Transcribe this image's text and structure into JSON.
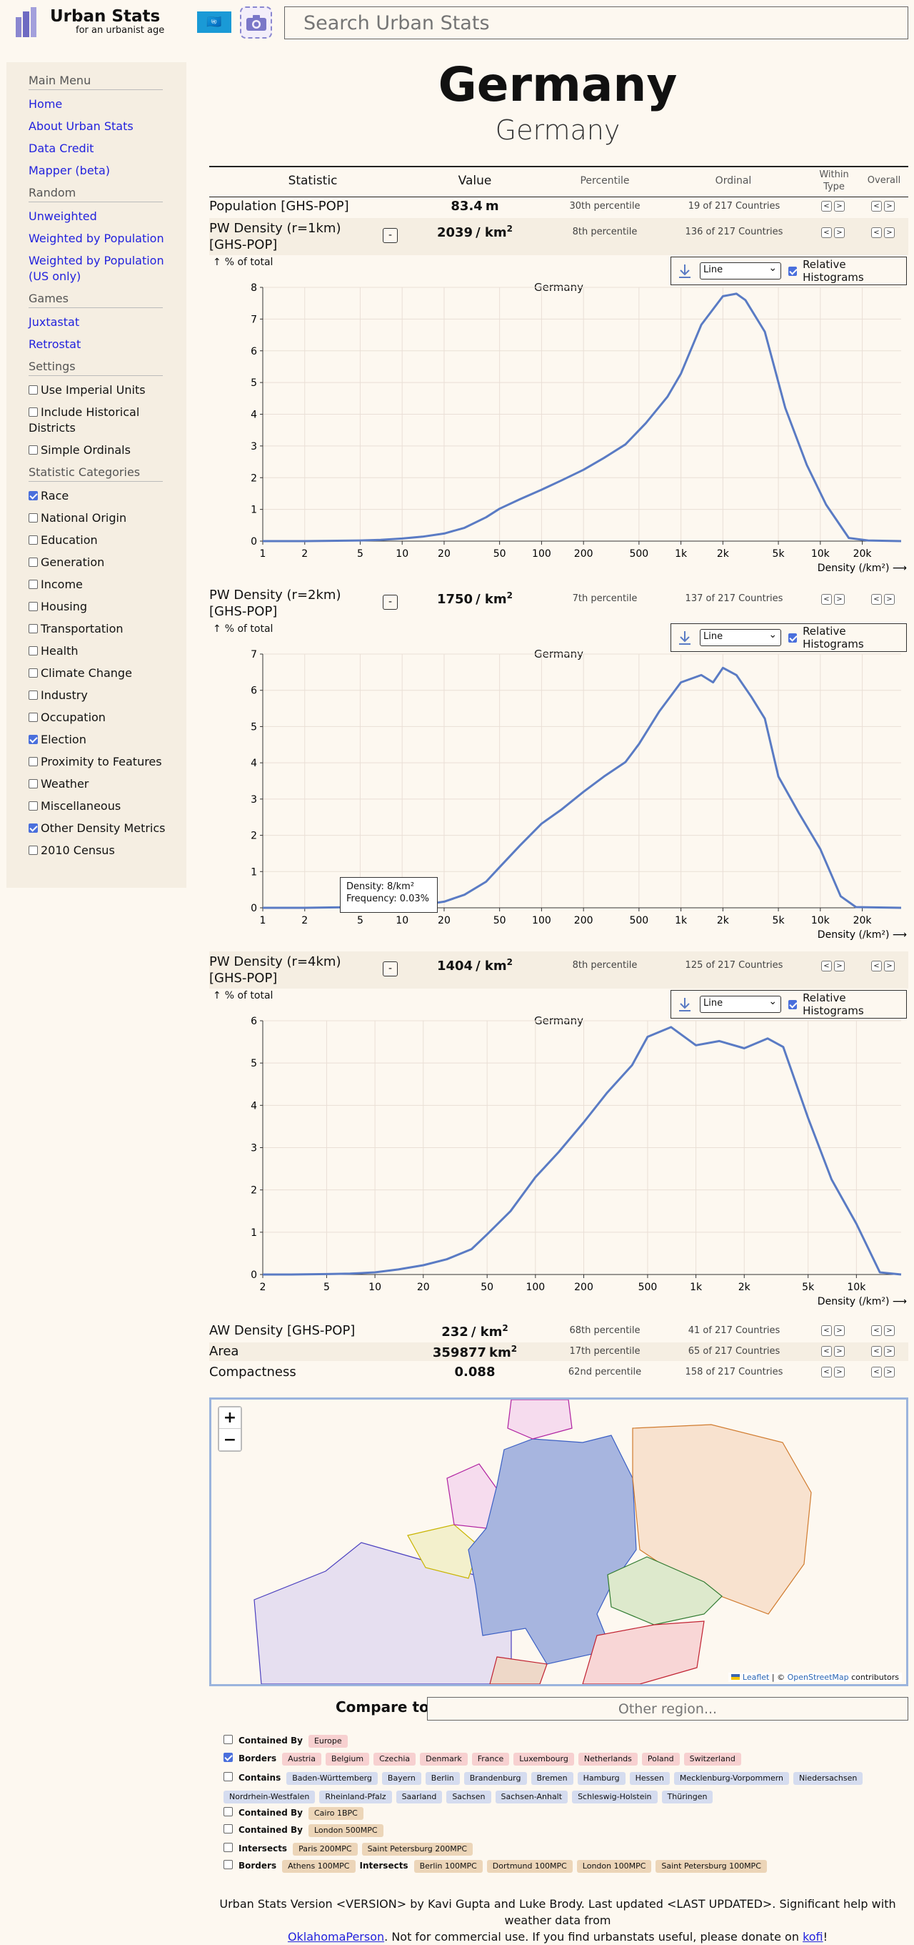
{
  "header": {
    "brand_title": "Urban Stats",
    "brand_tagline": "for an urbanist age",
    "flag_icon": "un-flag-icon",
    "search_placeholder": "Search Urban Stats"
  },
  "sidebar": {
    "main_menu_title": "Main Menu",
    "main_menu": [
      "Home",
      "About Urban Stats",
      "Data Credit",
      "Mapper (beta)"
    ],
    "random_title": "Random",
    "random": [
      "Unweighted",
      "Weighted by Population",
      "Weighted by Population (US only)"
    ],
    "games_title": "Games",
    "games": [
      "Juxtastat",
      "Retrostat"
    ],
    "settings_title": "Settings",
    "settings": [
      {
        "label": "Use Imperial Units",
        "checked": false
      },
      {
        "label": "Include Historical Districts",
        "checked": false
      },
      {
        "label": "Simple Ordinals",
        "checked": false
      }
    ],
    "categories_title": "Statistic Categories",
    "categories": [
      {
        "label": "Race",
        "checked": true
      },
      {
        "label": "National Origin",
        "checked": false
      },
      {
        "label": "Education",
        "checked": false
      },
      {
        "label": "Generation",
        "checked": false
      },
      {
        "label": "Income",
        "checked": false
      },
      {
        "label": "Housing",
        "checked": false
      },
      {
        "label": "Transportation",
        "checked": false
      },
      {
        "label": "Health",
        "checked": false
      },
      {
        "label": "Climate Change",
        "checked": false
      },
      {
        "label": "Industry",
        "checked": false
      },
      {
        "label": "Occupation",
        "checked": false
      },
      {
        "label": "Election",
        "checked": true
      },
      {
        "label": "Proximity to Features",
        "checked": false
      },
      {
        "label": "Weather",
        "checked": false
      },
      {
        "label": "Miscellaneous",
        "checked": false
      },
      {
        "label": "Other Density Metrics",
        "checked": true
      },
      {
        "label": "2010 Census",
        "checked": false
      }
    ]
  },
  "page": {
    "title": "Germany",
    "subtitle": "Germany"
  },
  "table": {
    "headers": {
      "statistic": "Statistic",
      "value": "Value",
      "percentile": "Percentile",
      "ordinal": "Ordinal",
      "within_type": "Within Type",
      "overall": "Overall"
    },
    "rows": [
      {
        "name": "Population [GHS-POP]",
        "value": "83.4",
        "unit": "m",
        "percentile": "30th percentile",
        "ordinal": "19 of 217 Countries"
      },
      {
        "name": "PW Density (r=1km) [GHS-POP]",
        "value": "2039",
        "unit": "/ km",
        "percentile": "8th percentile",
        "ordinal": "136 of 217 Countries"
      },
      {
        "name": "PW Density (r=2km) [GHS-POP]",
        "value": "1750",
        "unit": "/ km",
        "percentile": "7th percentile",
        "ordinal": "137 of 217 Countries"
      },
      {
        "name": "PW Density (r=4km) [GHS-POP]",
        "value": "1404",
        "unit": "/ km",
        "percentile": "8th percentile",
        "ordinal": "125 of 217 Countries"
      },
      {
        "name": "AW Density [GHS-POP]",
        "value": "232",
        "unit": "/ km",
        "percentile": "68th percentile",
        "ordinal": "41 of 217 Countries"
      },
      {
        "name": "Area",
        "value": "359877",
        "unit": "km",
        "percentile": "17th percentile",
        "ordinal": "65 of 217 Countries"
      },
      {
        "name": "Compactness",
        "value": "0.088",
        "unit": "",
        "percentile": "62nd percentile",
        "ordinal": "158 of 217 Countries"
      }
    ],
    "unit_superscript": "2",
    "prev_label": "<",
    "next_label": ">",
    "toggle_label": "-"
  },
  "histogram_controls": {
    "pct_total_label": "% of total",
    "pct_total_arrow": "↑",
    "mode_selected": "Line",
    "relative_label": "Relative Histograms",
    "relative_checked": true,
    "download_icon": "download-icon"
  },
  "tooltip": {
    "density": "Density: 8/km²",
    "frequency": "Frequency: 0.03%"
  },
  "chart_data": [
    {
      "type": "line",
      "title": "Germany",
      "xlabel": "Density (/km²) ⟶",
      "ylabel": "% of total",
      "xscale": "log",
      "xlim": [
        1,
        38000
      ],
      "ylim": [
        0,
        8
      ],
      "xticks": [
        1,
        2,
        5,
        10,
        20,
        50,
        100,
        200,
        500,
        1000,
        2000,
        5000,
        10000,
        20000
      ],
      "xtick_labels": [
        "1",
        "2",
        "5",
        "10",
        "20",
        "50",
        "100",
        "200",
        "500",
        "1k",
        "2k",
        "5k",
        "10k",
        "20k"
      ],
      "yticks": [
        0,
        1,
        2,
        3,
        4,
        5,
        6,
        7,
        8
      ],
      "x": [
        1,
        2,
        3,
        5,
        7,
        10,
        14,
        20,
        28,
        40,
        50,
        70,
        100,
        140,
        200,
        280,
        400,
        560,
        800,
        1000,
        1400,
        2000,
        2500,
        2900,
        4000,
        5600,
        8000,
        11000,
        16000,
        22000,
        38000
      ],
      "y": [
        0,
        0,
        0.01,
        0.02,
        0.04,
        0.08,
        0.14,
        0.24,
        0.42,
        0.75,
        1.02,
        1.32,
        1.62,
        1.92,
        2.25,
        2.62,
        3.05,
        3.72,
        4.55,
        5.28,
        6.82,
        7.72,
        7.8,
        7.6,
        6.6,
        4.2,
        2.4,
        1.15,
        0.1,
        0.02,
        0
      ]
    },
    {
      "type": "line",
      "title": "Germany",
      "xlabel": "Density (/km²) ⟶",
      "ylabel": "% of total",
      "xscale": "log",
      "xlim": [
        1,
        38000
      ],
      "ylim": [
        0,
        7
      ],
      "xticks": [
        1,
        2,
        5,
        10,
        20,
        50,
        100,
        200,
        500,
        1000,
        2000,
        5000,
        10000,
        20000
      ],
      "xtick_labels": [
        "1",
        "2",
        "5",
        "10",
        "20",
        "50",
        "100",
        "200",
        "500",
        "1k",
        "2k",
        "5k",
        "10k",
        "20k"
      ],
      "yticks": [
        0,
        1,
        2,
        3,
        4,
        5,
        6,
        7
      ],
      "x": [
        1,
        2,
        3,
        5,
        8,
        10,
        14,
        20,
        28,
        40,
        50,
        70,
        100,
        140,
        200,
        280,
        400,
        500,
        700,
        1000,
        1400,
        1700,
        2000,
        2500,
        3200,
        4000,
        5000,
        7000,
        10000,
        14000,
        18000,
        38000
      ],
      "y": [
        0,
        0,
        0.01,
        0.02,
        0.03,
        0.05,
        0.08,
        0.17,
        0.36,
        0.72,
        1.12,
        1.72,
        2.32,
        2.72,
        3.2,
        3.62,
        4.02,
        4.52,
        5.42,
        6.22,
        6.42,
        6.22,
        6.62,
        6.42,
        5.82,
        5.22,
        3.62,
        2.62,
        1.62,
        0.32,
        0.02,
        0
      ]
    },
    {
      "type": "line",
      "title": "Germany",
      "xlabel": "Density (/km²) ⟶",
      "ylabel": "% of total",
      "xscale": "log",
      "xlim": [
        2,
        19000
      ],
      "ylim": [
        0,
        6
      ],
      "xticks": [
        2,
        5,
        10,
        20,
        50,
        100,
        200,
        500,
        1000,
        2000,
        5000,
        10000
      ],
      "xtick_labels": [
        "2",
        "5",
        "10",
        "20",
        "50",
        "100",
        "200",
        "500",
        "1k",
        "2k",
        "5k",
        "10k"
      ],
      "yticks": [
        0,
        1,
        2,
        3,
        4,
        5,
        6
      ],
      "x": [
        2,
        3,
        5,
        7,
        10,
        14,
        20,
        28,
        40,
        50,
        70,
        100,
        140,
        200,
        280,
        400,
        500,
        700,
        1000,
        1400,
        2000,
        2800,
        3500,
        5000,
        7000,
        10000,
        14000,
        19000
      ],
      "y": [
        0,
        0,
        0.01,
        0.02,
        0.05,
        0.12,
        0.22,
        0.36,
        0.6,
        0.95,
        1.5,
        2.3,
        2.9,
        3.6,
        4.3,
        4.95,
        5.62,
        5.85,
        5.42,
        5.52,
        5.35,
        5.58,
        5.38,
        3.7,
        2.25,
        1.2,
        0.05,
        0
      ]
    }
  ],
  "map": {
    "zoom_in": "+",
    "zoom_out": "−",
    "attribution_leaflet": "Leaflet",
    "attribution_sep": " | © ",
    "attribution_osm": "OpenStreetMap",
    "attribution_tail": " contributors"
  },
  "compare": {
    "label": "Compare to:",
    "placeholder": "Other region..."
  },
  "relations": [
    {
      "groups": [
        {
          "kind": "Contained By",
          "items": [
            "Europe"
          ],
          "color": "#f7d0d0"
        }
      ],
      "checked": false
    },
    {
      "groups": [
        {
          "kind": "Borders",
          "items": [
            "Austria",
            "Belgium",
            "Czechia",
            "Denmark",
            "France",
            "Luxembourg",
            "Netherlands",
            "Poland",
            "Switzerland"
          ],
          "color": "#f7d0d0"
        }
      ],
      "checked": true
    },
    {
      "groups": [
        {
          "kind": "Contains",
          "items": [
            "Baden-Württemberg",
            "Bayern",
            "Berlin",
            "Brandenburg",
            "Bremen",
            "Hamburg",
            "Hessen",
            "Mecklenburg-Vorpommern",
            "Niedersachsen",
            "Nordrhein-Westfalen",
            "Rheinland-Pfalz",
            "Saarland",
            "Sachsen",
            "Sachsen-Anhalt",
            "Schleswig-Holstein",
            "Thüringen"
          ],
          "color": "#d5dcef"
        }
      ],
      "checked": false
    },
    {
      "groups": [
        {
          "kind": "Contained By",
          "items": [
            "Cairo 1BPC"
          ],
          "color": "#ecd5b8"
        }
      ],
      "checked": false
    },
    {
      "groups": [
        {
          "kind": "Contained By",
          "items": [
            "London 500MPC"
          ],
          "color": "#ecd5b8"
        }
      ],
      "checked": false
    },
    {
      "groups": [
        {
          "kind": "Intersects",
          "items": [
            "Paris 200MPC",
            "Saint Petersburg 200MPC"
          ],
          "color": "#ecd5b8"
        }
      ],
      "checked": false
    },
    {
      "groups": [
        {
          "kind": "Borders",
          "items": [
            "Athens 100MPC"
          ],
          "color": "#ecd5b8"
        },
        {
          "kind": "Intersects",
          "items": [
            "Berlin 100MPC",
            "Dortmund 100MPC",
            "London 100MPC",
            "Saint Petersburg 100MPC"
          ],
          "color": "#ecd5b8"
        }
      ],
      "checked": false
    }
  ],
  "footer": {
    "line1": "Urban Stats Version <VERSION> by Kavi Gupta and Luke Brody. Last updated <LAST UPDATED>. Significant help with weather data from",
    "link1": "OklahomaPerson",
    "mid": ". Not for commercial use. If you find urbanstats useful, please donate on ",
    "link2": "kofi",
    "end": "!"
  },
  "colors": {
    "background": "#fdf8f0",
    "panel": "#f5eee2",
    "link": "#2222dd",
    "series": "#5a7bc4",
    "accent": "#4a6fdc"
  }
}
